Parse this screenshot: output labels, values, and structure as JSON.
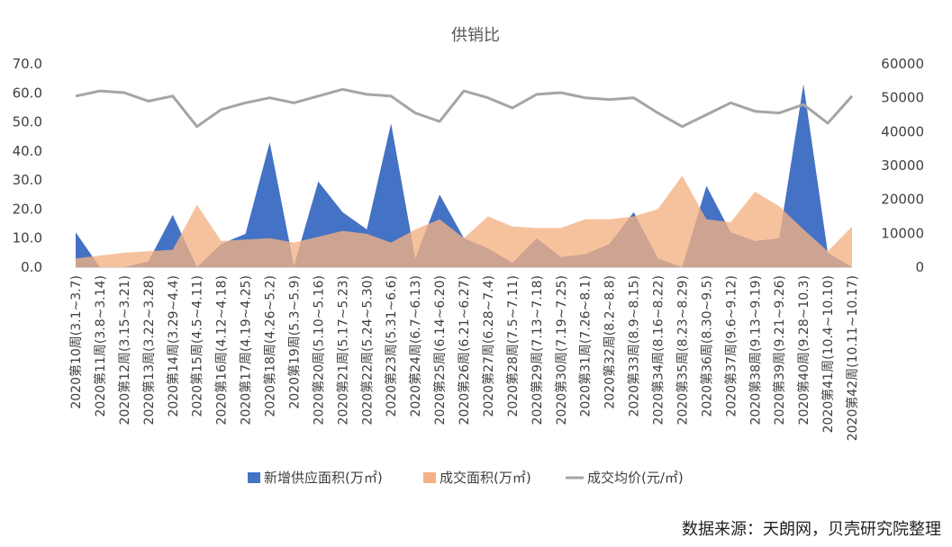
{
  "chart_data": {
    "type": "area",
    "title": "供销比",
    "categories": [
      "2020第10周(3.1~3.7)",
      "2020第11周(3.8~3.14)",
      "2020第12周(3.15~3.21)",
      "2020第13周(3.22~3.28)",
      "2020第14周(3.29~4.4)",
      "2020第15周(4.5~4.11)",
      "2020第16周(4.12~4.18)",
      "2020第17周(4.19~4.25)",
      "2020第18周(4.26~5.2)",
      "2020第19周(5.3~5.9)",
      "2020第20周(5.10~5.16)",
      "2020第21周(5.17~5.23)",
      "2020第22周(5.24~5.30)",
      "2020第23周(5.31~6.6)",
      "2020第24周(6.7~6.13)",
      "2020第25周(6.14~6.20)",
      "2020第26周(6.21~6.27)",
      "2020第27周(6.28~7.4)",
      "2020第28周(7.5~7.11)",
      "2020第29周(7.13~7.18)",
      "2020第30周(7.19~7.25)",
      "2020第31周(7.26~8.1)",
      "2020第32周(8.2~8.8)",
      "2020第33周(8.9~8.15)",
      "2020第34周(8.16~8.22)",
      "2020第35周(8.23~8.29)",
      "2020第36周(8.30~9.5)",
      "2020第37周(9.6~9.12)",
      "2020第38周(9.13~9.19)",
      "2020第39周(9.21~9.26)",
      "2020第40周(9.28~10.3)",
      "2020第41周(10.4~10.10)",
      "2020第42周(10.11~10.17)"
    ],
    "series": [
      {
        "name": "新增供应面积(万㎡)",
        "axis": "left",
        "render": "area",
        "color": "#4472C4",
        "values": [
          12.0,
          0.0,
          0.0,
          2.0,
          18.0,
          0.0,
          8.0,
          11.5,
          43.0,
          0.5,
          29.5,
          19.0,
          13.0,
          49.5,
          3.0,
          25.0,
          10.0,
          6.5,
          1.5,
          10.0,
          3.5,
          4.5,
          8.0,
          19.0,
          3.0,
          0.0,
          28.0,
          12.0,
          9.0,
          10.0,
          63.0,
          5.0,
          0.0
        ]
      },
      {
        "name": "成交面积(万㎡)",
        "axis": "left",
        "render": "area",
        "color": "#F4B183",
        "values": [
          3.0,
          4.0,
          5.0,
          5.5,
          6.0,
          21.5,
          9.0,
          9.5,
          10.0,
          8.5,
          10.5,
          12.5,
          11.5,
          8.5,
          13.0,
          16.5,
          10.0,
          17.5,
          14.0,
          13.5,
          13.5,
          16.5,
          16.5,
          17.5,
          20.0,
          31.5,
          16.5,
          15.5,
          26.0,
          21.0,
          13.0,
          5.5,
          14.0
        ]
      },
      {
        "name": "成交均价(元/㎡)",
        "axis": "right",
        "render": "line",
        "color": "#A5A5A5",
        "values": [
          50500,
          52000,
          51500,
          49000,
          50500,
          41500,
          46500,
          48500,
          50000,
          48500,
          50500,
          52500,
          51000,
          50500,
          45500,
          43000,
          52000,
          50000,
          47000,
          51000,
          51500,
          50000,
          49500,
          50000,
          45500,
          41500,
          45000,
          48500,
          46000,
          45500,
          48000,
          42500,
          50500
        ]
      }
    ],
    "y_left": {
      "min": 0,
      "max": 70,
      "ticks": [
        "0.0",
        "10.0",
        "20.0",
        "30.0",
        "40.0",
        "50.0",
        "60.0",
        "70.0"
      ]
    },
    "y_right": {
      "min": 0,
      "max": 60000,
      "ticks": [
        "0",
        "10000",
        "20000",
        "30000",
        "40000",
        "50000",
        "60000"
      ]
    },
    "grid": false,
    "legend": "bottom",
    "source": "数据来源：天朗网，贝壳研究院整理"
  }
}
